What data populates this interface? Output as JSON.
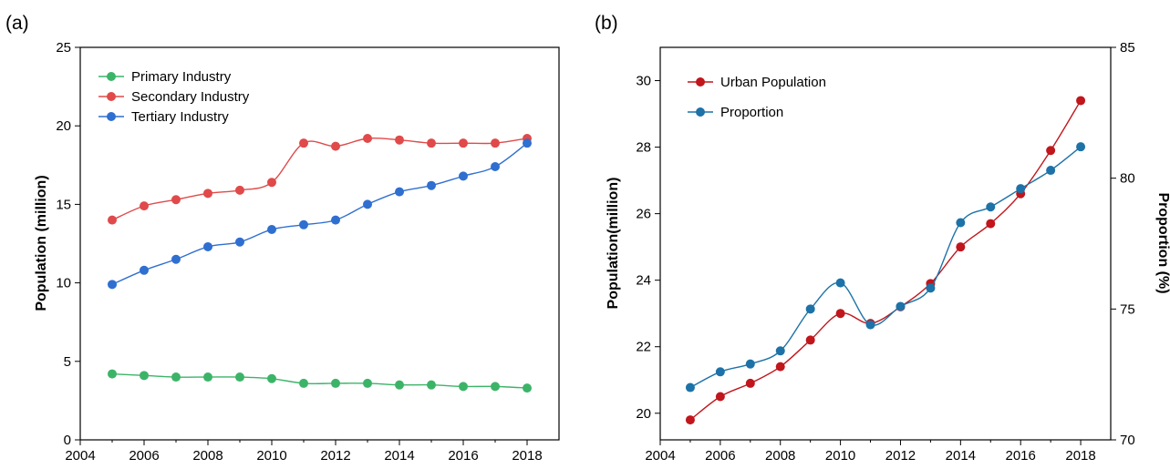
{
  "chart_data": [
    {
      "type": "line",
      "panel_label": "(a)",
      "ylabel": "Population (million)",
      "xlim": [
        2004,
        2019
      ],
      "ylim": [
        0,
        25
      ],
      "x_ticks": [
        "2004",
        "2006",
        "2008",
        "2010",
        "2012",
        "2014",
        "2016",
        "2018"
      ],
      "y_ticks": [
        "0",
        "5",
        "10",
        "15",
        "20",
        "25"
      ],
      "legend_position": "top-left",
      "x": [
        2005,
        2006,
        2007,
        2008,
        2009,
        2010,
        2011,
        2012,
        2013,
        2014,
        2015,
        2016,
        2017,
        2018
      ],
      "series": [
        {
          "name": "Primary Industry",
          "color": "#3cb468",
          "values": [
            4.2,
            4.1,
            4.0,
            4.0,
            4.0,
            3.9,
            3.6,
            3.6,
            3.6,
            3.5,
            3.5,
            3.4,
            3.4,
            3.3
          ]
        },
        {
          "name": "Secondary Industry",
          "color": "#e04a4a",
          "values": [
            14.0,
            14.9,
            15.3,
            15.7,
            15.9,
            16.4,
            18.9,
            18.7,
            19.2,
            19.1,
            18.9,
            18.9,
            18.9,
            19.2
          ]
        },
        {
          "name": "Tertiary Industry",
          "color": "#2f6fd0",
          "values": [
            9.9,
            10.8,
            11.5,
            12.3,
            12.6,
            13.4,
            13.7,
            14.0,
            15.0,
            15.8,
            16.2,
            16.8,
            17.4,
            18.9
          ]
        }
      ]
    },
    {
      "type": "line",
      "panel_label": "(b)",
      "ylabel": "Population(million)",
      "ylabel_right": "Proportion (%)",
      "xlim": [
        2004,
        2019
      ],
      "ylim": [
        19.2,
        31
      ],
      "ylim_right": [
        70,
        85
      ],
      "x_ticks": [
        "2004",
        "2006",
        "2008",
        "2010",
        "2012",
        "2014",
        "2016",
        "2018"
      ],
      "y_ticks": [
        "20",
        "22",
        "24",
        "26",
        "28",
        "30"
      ],
      "y_ticks_right": [
        "70",
        "75",
        "80",
        "85"
      ],
      "legend_position": "top-left",
      "x": [
        2005,
        2006,
        2007,
        2008,
        2009,
        2010,
        2011,
        2012,
        2013,
        2014,
        2015,
        2016,
        2017,
        2018
      ],
      "series": [
        {
          "name": "Urban Population",
          "axis": "left",
          "color": "#c0161c",
          "values": [
            19.8,
            20.5,
            20.9,
            21.4,
            22.2,
            23.0,
            22.7,
            23.2,
            23.9,
            25.0,
            25.7,
            26.6,
            27.9,
            29.4
          ]
        },
        {
          "name": "Proportion",
          "axis": "right",
          "color": "#1d72a8",
          "values": [
            72.0,
            72.6,
            72.9,
            73.4,
            75.0,
            76.0,
            74.4,
            75.1,
            75.8,
            78.3,
            78.9,
            79.6,
            80.3,
            81.2
          ]
        }
      ]
    }
  ]
}
